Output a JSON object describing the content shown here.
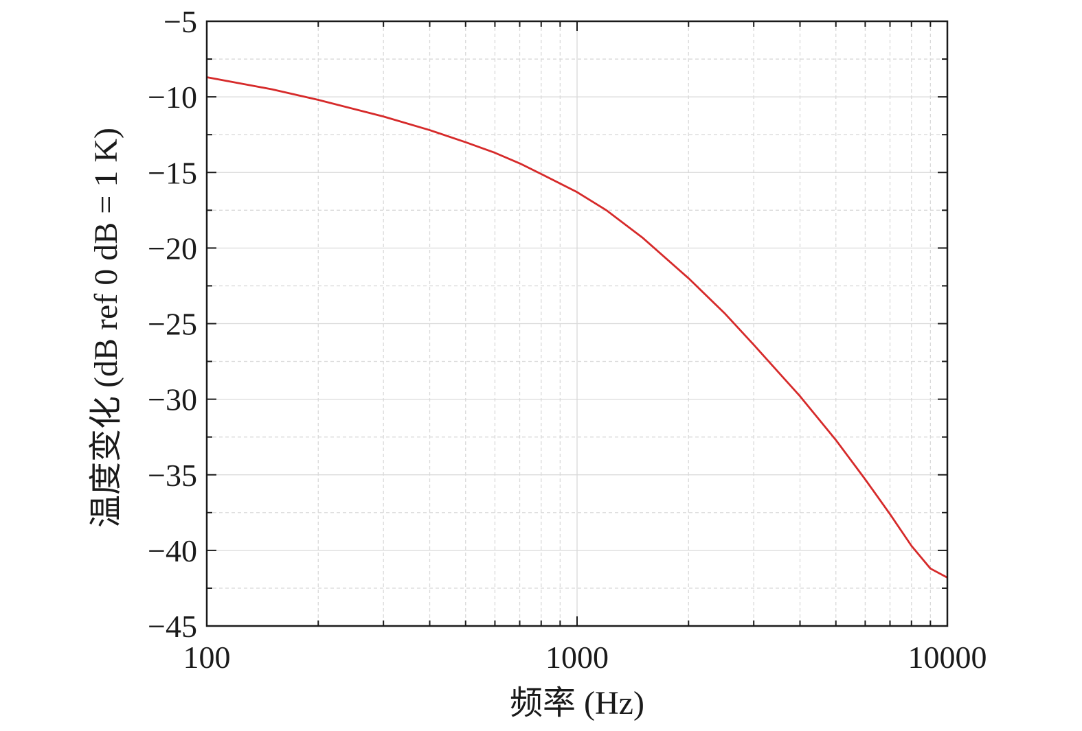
{
  "chart_data": {
    "type": "line",
    "title": "",
    "xlabel": "频率 (Hz)",
    "ylabel": "温度变化 (dB ref 0 dB = 1 K)",
    "x_scale": "log",
    "xlim": [
      100,
      10000
    ],
    "ylim": [
      -45,
      -5
    ],
    "x_ticks": [
      100,
      1000,
      10000
    ],
    "x_tick_labels": [
      "100",
      "1000",
      "10000"
    ],
    "y_ticks": [
      -5,
      -10,
      -15,
      -20,
      -25,
      -30,
      -35,
      -40,
      -45
    ],
    "y_tick_labels": [
      "−5",
      "−10",
      "−15",
      "−20",
      "−25",
      "−30",
      "−35",
      "−40",
      "−45"
    ],
    "grid": true,
    "series_color": "#d62a2a",
    "series": [
      {
        "x": [
          100,
          150,
          200,
          300,
          400,
          500,
          600,
          700,
          800,
          1000,
          1200,
          1500,
          2000,
          2500,
          3000,
          4000,
          5000,
          6000,
          7000,
          8000,
          9000,
          10000
        ],
        "y": [
          -8.7,
          -9.5,
          -10.2,
          -11.3,
          -12.2,
          -13.0,
          -13.7,
          -14.4,
          -15.1,
          -16.3,
          -17.5,
          -19.3,
          -22.0,
          -24.3,
          -26.4,
          -29.8,
          -32.7,
          -35.3,
          -37.6,
          -39.7,
          -41.2,
          -41.8
        ]
      }
    ]
  }
}
